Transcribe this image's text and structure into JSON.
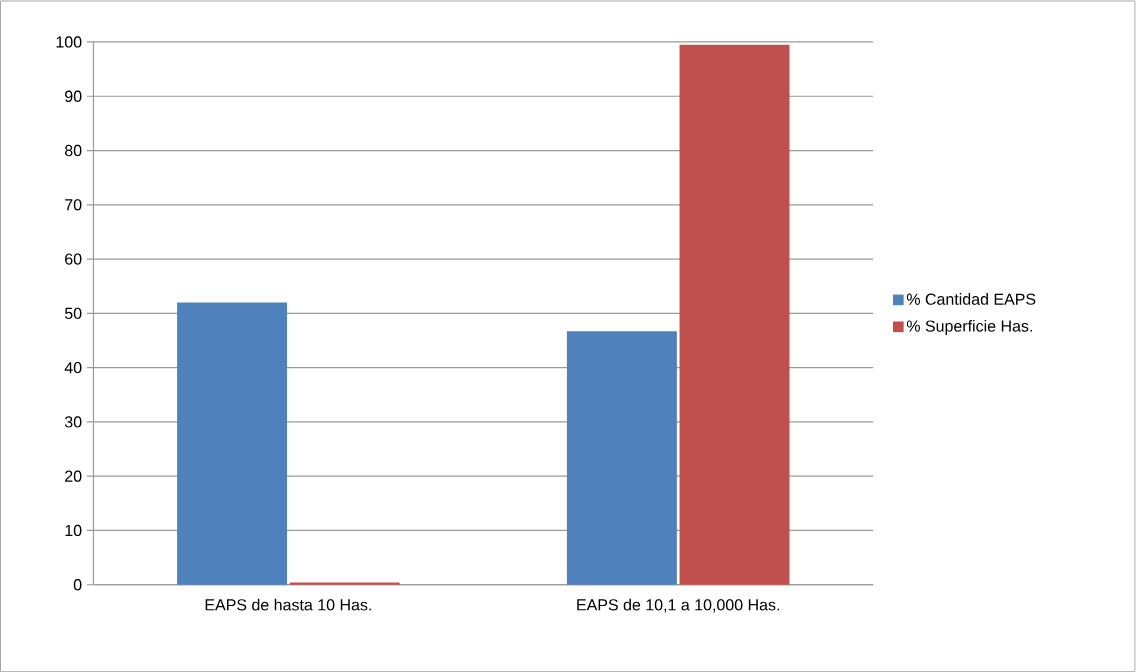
{
  "chart_data": {
    "type": "bar",
    "categories": [
      "EAPS de hasta 10 Has.",
      "EAPS de 10,1 a 10,000 Has."
    ],
    "series": [
      {
        "name": "% Cantidad EAPS",
        "color": "#4f81bd",
        "values": [
          52.0,
          46.7
        ]
      },
      {
        "name": "% Superficie Has.",
        "color": "#c0504d",
        "values": [
          0.4,
          99.5
        ]
      }
    ],
    "ylim": [
      0,
      100
    ],
    "yticks": [
      0,
      10,
      20,
      30,
      40,
      50,
      60,
      70,
      80,
      90,
      100
    ],
    "grid": "y",
    "legend": "right"
  }
}
